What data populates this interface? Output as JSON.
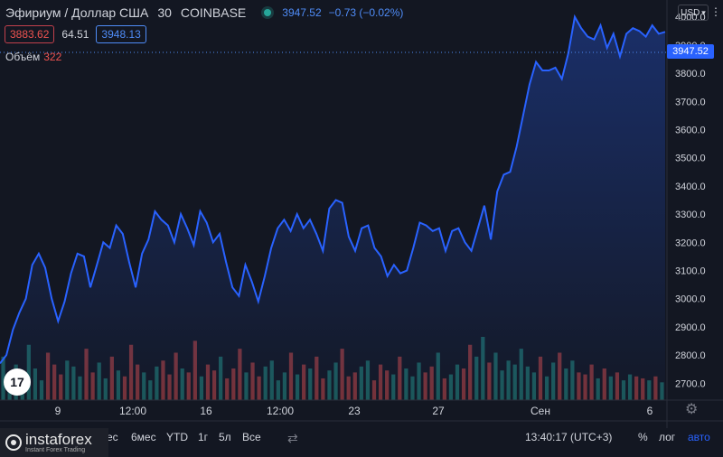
{
  "header": {
    "symbol": "Эфириум / Доллар США",
    "interval": "30",
    "exchange": "COINBASE",
    "price": "3947.52",
    "change": "−0.73 (−0.02%)",
    "bid": "3883.62",
    "spread": "64.51",
    "ask": "3948.13",
    "volume_label": "Объём",
    "volume_value": "322",
    "currency": "USD"
  },
  "current_price_tag": "3947.52",
  "bottom_bar": {
    "periods": [
      "ес",
      "6мес",
      "YTD",
      "1г",
      "5л",
      "Все"
    ],
    "time": "13:40:17 (UTC+3)",
    "percent": "%",
    "log": "лог",
    "auto": "авто"
  },
  "logo": {
    "name": "instaforex",
    "tagline": "Instant Forex Trading"
  },
  "colors": {
    "background": "#131722",
    "line": "#2962ff",
    "vol_up": "#26a69a",
    "vol_down": "#ef5350"
  },
  "icons": [
    "tradingview-logo-icon",
    "settings-gear-icon",
    "compare-icon",
    "menu-icon"
  ],
  "chart_data": {
    "type": "area",
    "title": "",
    "xlabel": "",
    "ylabel": "",
    "ylim": [
      2640,
      4060
    ],
    "y_ticks": [
      2700,
      2800,
      2900,
      3000,
      3100,
      3200,
      3300,
      3400,
      3500,
      3600,
      3700,
      3800,
      3900,
      4000
    ],
    "x_ticks": [
      "9",
      "12:00",
      "16",
      "12:00",
      "23",
      "27",
      "Сен",
      "6"
    ],
    "grid": false,
    "series": [
      {
        "x": [
          0,
          1,
          2,
          3,
          4,
          5,
          6,
          7,
          8,
          9,
          10,
          11,
          12,
          13,
          14,
          15,
          16,
          17,
          18,
          19,
          20,
          21,
          22,
          23,
          24,
          25,
          26,
          27,
          28,
          29,
          30,
          31,
          32,
          33,
          34,
          35,
          36,
          37,
          38,
          39,
          40,
          41,
          42,
          43,
          44,
          45,
          46,
          47,
          48,
          49,
          50,
          51,
          52,
          53,
          54,
          55,
          56,
          57,
          58,
          59,
          60,
          61,
          62,
          63,
          64,
          65,
          66,
          67,
          68,
          69,
          70,
          71,
          72,
          73,
          74,
          75,
          76,
          77,
          78,
          79,
          80,
          81,
          82,
          83,
          84,
          85,
          86,
          87,
          88,
          89,
          90,
          91,
          92,
          93,
          94,
          95,
          96,
          97,
          98,
          99,
          100,
          101,
          102,
          103
        ],
        "values": [
          2770,
          2800,
          2890,
          2950,
          3000,
          3120,
          3160,
          3110,
          3000,
          2920,
          2990,
          3090,
          3160,
          3150,
          3040,
          3120,
          3200,
          3180,
          3260,
          3230,
          3130,
          3040,
          3160,
          3210,
          3310,
          3280,
          3260,
          3200,
          3300,
          3250,
          3190,
          3310,
          3270,
          3200,
          3230,
          3130,
          3040,
          3010,
          3120,
          3060,
          2990,
          3080,
          3180,
          3250,
          3280,
          3240,
          3300,
          3250,
          3280,
          3230,
          3170,
          3320,
          3350,
          3340,
          3220,
          3170,
          3250,
          3260,
          3180,
          3150,
          3080,
          3120,
          3090,
          3100,
          3180,
          3270,
          3260,
          3240,
          3250,
          3170,
          3240,
          3250,
          3200,
          3170,
          3250,
          3330,
          3210,
          3380,
          3440,
          3450,
          3540,
          3650,
          3760,
          3840,
          3810,
          3810,
          3820,
          3780,
          3870,
          4000,
          3960,
          3930,
          3920,
          3970,
          3890,
          3940,
          3860,
          3940,
          3960,
          3950,
          3930,
          3970,
          3940,
          3947
        ]
      }
    ],
    "volume": [
      110,
      60,
      90,
      70,
      140,
      80,
      50,
      120,
      90,
      65,
      100,
      85,
      60,
      130,
      70,
      95,
      55,
      110,
      75,
      60,
      140,
      90,
      70,
      50,
      85,
      100,
      65,
      120,
      80,
      70,
      150,
      60,
      90,
      75,
      110,
      55,
      80,
      130,
      70,
      95,
      60,
      85,
      100,
      50,
      70,
      120,
      65,
      90,
      80,
      110,
      55,
      75,
      95,
      130,
      60,
      70,
      85,
      100,
      50,
      90,
      75,
      65,
      110,
      80,
      60,
      95,
      70,
      85,
      120,
      55,
      65,
      90,
      80,
      140,
      110,
      160,
      95,
      120,
      75,
      100,
      90,
      130,
      85,
      70,
      110,
      60,
      95,
      120,
      80,
      100,
      70,
      65,
      90,
      55,
      80,
      60,
      70,
      50,
      65,
      60,
      55,
      50,
      60,
      45
    ]
  }
}
